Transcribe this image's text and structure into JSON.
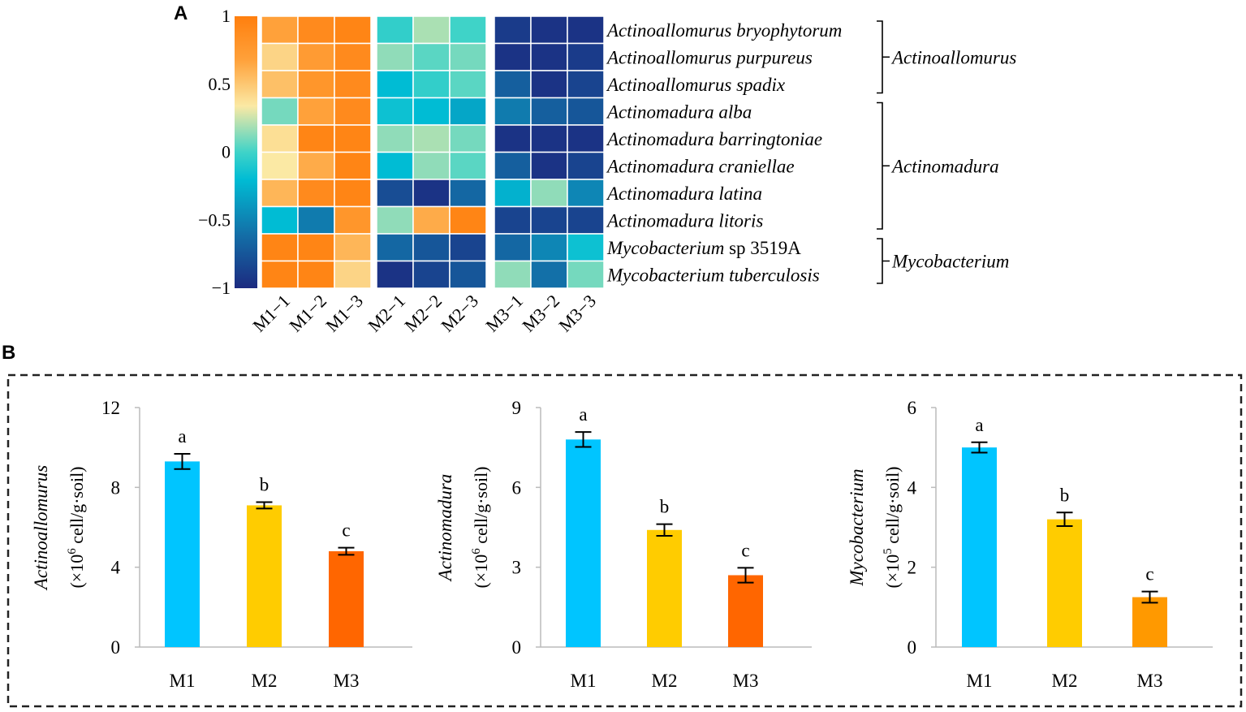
{
  "chart_data": [
    {
      "type": "heatmap",
      "panel_label": "A",
      "columns": [
        "M1−1",
        "M1−2",
        "M1−3",
        "M2−1",
        "M2−2",
        "M2−3",
        "M3−1",
        "M3−2",
        "M3−3"
      ],
      "column_groups": [
        [
          "M1−1",
          "M1−2",
          "M1−3"
        ],
        [
          "M2−1",
          "M2−2",
          "M2−3"
        ],
        [
          "M3−1",
          "M3−2",
          "M3−3"
        ]
      ],
      "rows": [
        {
          "name": "Actinoallomurus bryophytorum",
          "italic": "Actinoallomurus bryophytorum",
          "rest": ""
        },
        {
          "name": "Actinoallomurus purpureus",
          "italic": "Actinoallomurus purpureus",
          "rest": ""
        },
        {
          "name": "Actinoallomurus spadix",
          "italic": "Actinoallomurus spadix",
          "rest": ""
        },
        {
          "name": "Actinomadura alba",
          "italic": "Actinomadura alba",
          "rest": ""
        },
        {
          "name": "Actinomadura barringtoniae",
          "italic": "Actinomadura barringtoniae",
          "rest": ""
        },
        {
          "name": "Actinomadura craniellae",
          "italic": "Actinomadura craniellae",
          "rest": ""
        },
        {
          "name": "Actinomadura latina",
          "italic": "Actinomadura latina",
          "rest": ""
        },
        {
          "name": "Actinomadura litoris",
          "italic": "Actinomadura litoris",
          "rest": ""
        },
        {
          "name": "Mycobacterium sp 3519A",
          "italic": "Mycobacterium",
          "rest": " sp 3519A"
        },
        {
          "name": "Mycobacterium tuberculosis",
          "italic": "Mycobacterium tuberculosis",
          "rest": ""
        }
      ],
      "values": [
        [
          0.7,
          0.9,
          0.95,
          -0.05,
          0.2,
          0.0,
          -0.9,
          -0.95,
          -0.95
        ],
        [
          0.45,
          0.75,
          0.9,
          0.15,
          0.05,
          0.1,
          -0.95,
          -0.95,
          -0.9
        ],
        [
          0.55,
          0.8,
          0.9,
          -0.25,
          -0.05,
          0.05,
          -0.7,
          -0.95,
          -0.85
        ],
        [
          0.1,
          0.7,
          0.9,
          -0.2,
          -0.25,
          -0.35,
          -0.55,
          -0.7,
          -0.75
        ],
        [
          0.4,
          0.95,
          0.95,
          0.15,
          0.2,
          0.1,
          -0.95,
          -0.95,
          -0.95
        ],
        [
          0.35,
          0.65,
          0.95,
          -0.25,
          0.15,
          0.05,
          -0.7,
          -0.95,
          -0.85
        ],
        [
          0.6,
          0.9,
          0.95,
          -0.8,
          -0.95,
          -0.65,
          -0.3,
          0.15,
          -0.5
        ],
        [
          -0.25,
          -0.55,
          0.8,
          0.15,
          0.65,
          0.95,
          -0.85,
          -0.85,
          -0.85
        ],
        [
          0.95,
          0.95,
          0.6,
          -0.65,
          -0.75,
          -0.85,
          -0.65,
          -0.5,
          -0.2
        ],
        [
          0.95,
          0.95,
          0.45,
          -0.95,
          -0.85,
          -0.75,
          0.15,
          -0.6,
          0.1
        ]
      ],
      "colorbar": {
        "min": -1,
        "max": 1,
        "ticks": [
          "1",
          "0.5",
          "0",
          "−0.5",
          "−1"
        ],
        "tick_values": [
          1,
          0.5,
          0,
          -0.5,
          -1
        ]
      },
      "groups": [
        {
          "label": "Actinoallomurus",
          "rows": [
            0,
            2
          ]
        },
        {
          "label": "Actinomadura",
          "rows": [
            3,
            7
          ]
        },
        {
          "label": "Mycobacterium",
          "rows": [
            8,
            9
          ]
        }
      ]
    },
    {
      "type": "bar",
      "panel_label": "B",
      "ylabel_italic": "Actinoallomurus",
      "ylabel_prefix": "(×10",
      "ylabel_exp": "6",
      "ylabel_unit": " cell/g·soil)",
      "categories": [
        "M1",
        "M2",
        "M3"
      ],
      "values": [
        9.3,
        7.1,
        4.8
      ],
      "errors": [
        0.38,
        0.16,
        0.18
      ],
      "letters": [
        "a",
        "b",
        "c"
      ],
      "colors": [
        "#00c5ff",
        "#ffcc00",
        "#ff6600"
      ],
      "ylim": [
        0,
        12
      ],
      "yticks": [
        "0",
        "4",
        "8",
        "12"
      ],
      "ytick_values": [
        0,
        4,
        8,
        12
      ]
    },
    {
      "type": "bar",
      "ylabel_italic": "Actinomadura",
      "ylabel_prefix": "(×10",
      "ylabel_exp": "6",
      "ylabel_unit": " cell/g·soil)",
      "categories": [
        "M1",
        "M2",
        "M3"
      ],
      "values": [
        7.8,
        4.4,
        2.7
      ],
      "errors": [
        0.28,
        0.22,
        0.28
      ],
      "letters": [
        "a",
        "b",
        "c"
      ],
      "colors": [
        "#00c5ff",
        "#ffcc00",
        "#ff6600"
      ],
      "ylim": [
        0,
        9
      ],
      "yticks": [
        "0",
        "3",
        "6",
        "9"
      ],
      "ytick_values": [
        0,
        3,
        6,
        9
      ]
    },
    {
      "type": "bar",
      "ylabel_italic": "Mycobacterium",
      "ylabel_prefix": "(×10",
      "ylabel_exp": "5",
      "ylabel_unit": " cell/g·soil)",
      "categories": [
        "M1",
        "M2",
        "M3"
      ],
      "values": [
        5.0,
        3.2,
        1.25
      ],
      "errors": [
        0.13,
        0.17,
        0.14
      ],
      "letters": [
        "a",
        "b",
        "c"
      ],
      "colors": [
        "#00c5ff",
        "#ffcc00",
        "#ff9900"
      ],
      "ylim": [
        0,
        6
      ],
      "yticks": [
        "0",
        "2",
        "4",
        "6"
      ],
      "ytick_values": [
        0,
        2,
        4,
        6
      ]
    }
  ]
}
